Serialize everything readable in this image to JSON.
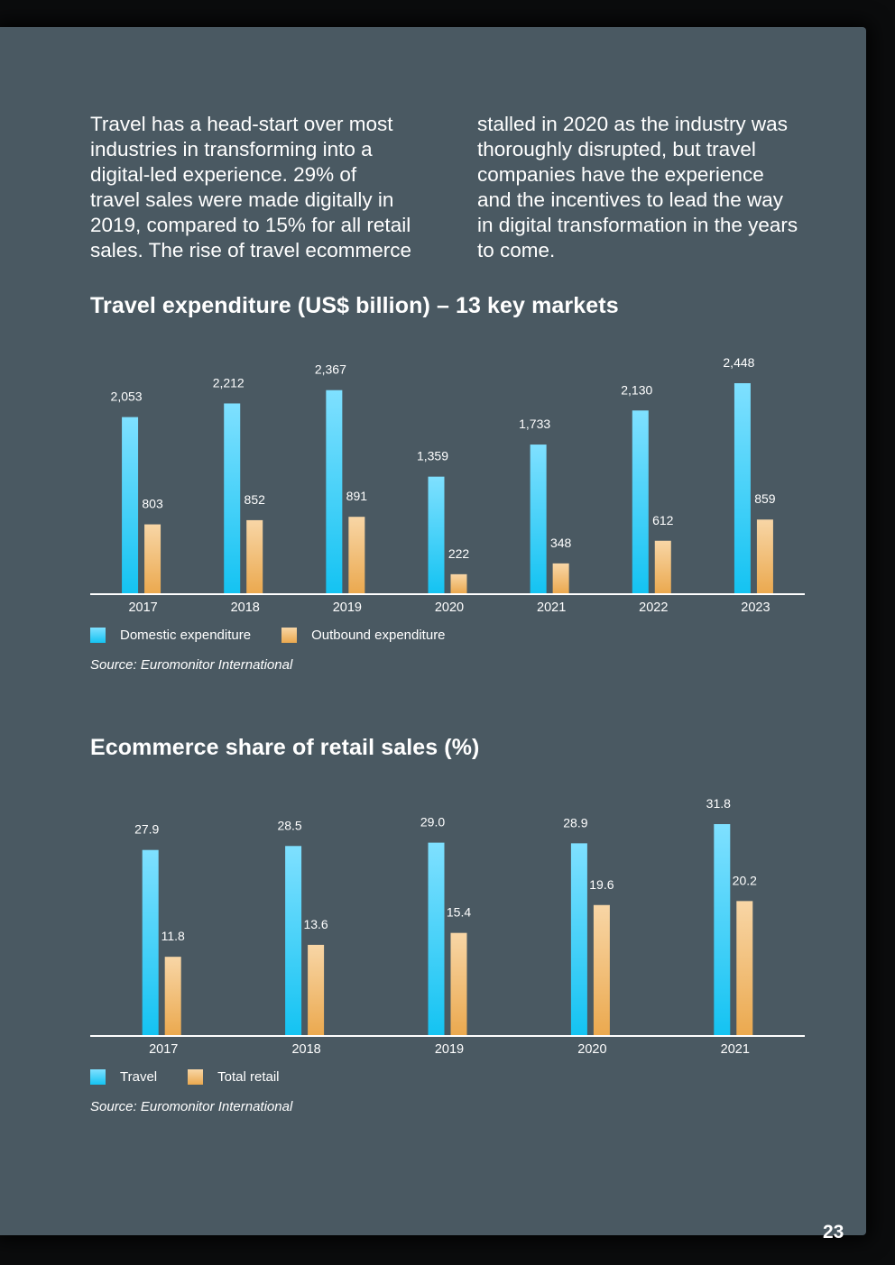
{
  "intro": {
    "left": "Travel has a head-start over most\nindustries in transforming into a\ndigital-led experience. 29% of\ntravel sales were made digitally in\n2019, compared to 15% for all retail\nsales. The rise of travel ecommerce",
    "right": "stalled in 2020 as the industry was\nthoroughly disrupted, but travel\ncompanies have the experience\nand the incentives to lead the way\nin digital transformation in the years\nto come."
  },
  "colors": {
    "page_bg": "#4a5962",
    "blue_top": "#7fe0ff",
    "blue_bottom": "#14c3f2",
    "orange_top": "#f8d6a6",
    "orange_bottom": "#eba94f",
    "axis": "#ffffff"
  },
  "chart_data": [
    {
      "type": "bar",
      "title": "Travel expenditure (US$ billion) – 13 key markets",
      "categories": [
        "2017",
        "2018",
        "2019",
        "2020",
        "2021",
        "2022",
        "2023"
      ],
      "series": [
        {
          "name": "Domestic expenditure",
          "values": [
            2053,
            2212,
            2367,
            1359,
            1733,
            2130,
            2448
          ],
          "labels": [
            "2,053",
            "2,212",
            "2,367",
            "1,359",
            "1,733",
            "2,130",
            "2,448"
          ]
        },
        {
          "name": "Outbound expenditure",
          "values": [
            803,
            852,
            891,
            222,
            348,
            612,
            859
          ],
          "labels": [
            "803",
            "852",
            "891",
            "222",
            "348",
            "612",
            "859"
          ]
        }
      ],
      "xlabel": "",
      "ylabel": "",
      "ylim": [
        0,
        2448
      ],
      "legend_position": "bottom-left",
      "source": "Source: Euromonitor International"
    },
    {
      "type": "bar",
      "title": "Ecommerce share of retail sales (%)",
      "categories": [
        "2017",
        "2018",
        "2019",
        "2020",
        "2021"
      ],
      "series": [
        {
          "name": "Travel",
          "values": [
            27.9,
            28.5,
            29.0,
            28.9,
            31.8
          ],
          "labels": [
            "27.9",
            "28.5",
            "29.0",
            "28.9",
            "31.8"
          ]
        },
        {
          "name": "Total retail",
          "values": [
            11.8,
            13.6,
            15.4,
            19.6,
            20.2
          ],
          "labels": [
            "11.8",
            "13.6",
            "15.4",
            "19.6",
            "20.2"
          ]
        }
      ],
      "xlabel": "",
      "ylabel": "",
      "ylim": [
        0,
        31.8
      ],
      "legend_position": "bottom-left",
      "source": "Source: Euromonitor International"
    }
  ],
  "page_number": "23"
}
